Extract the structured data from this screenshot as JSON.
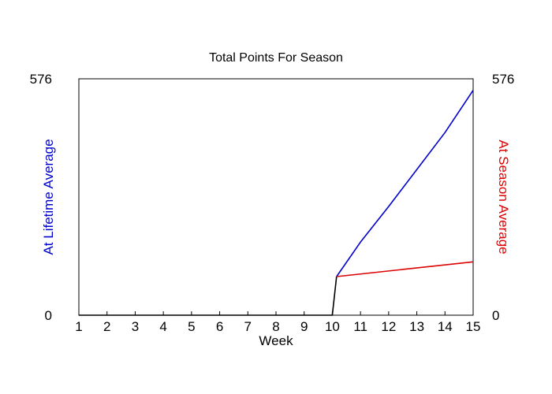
{
  "chart_data": {
    "type": "line",
    "title": "Total Points For Season",
    "xlabel": "Week",
    "ylabel_left": "At Lifetime Average",
    "ylabel_right": "At Season Average",
    "xlim": [
      1,
      15
    ],
    "x_ticks": [
      "1",
      "2",
      "3",
      "4",
      "5",
      "6",
      "7",
      "8",
      "9",
      "10",
      "11",
      "12",
      "13",
      "14",
      "15"
    ],
    "ylim": [
      0,
      576
    ],
    "y_left_ticks": [
      "0",
      "576"
    ],
    "y_right_ticks": [
      "0",
      "576"
    ],
    "colors": {
      "lifetime": "#0000cc",
      "season": "#dd0000",
      "actual": "#000000"
    },
    "series": [
      {
        "key": "actual",
        "x": [
          1,
          10,
          10.15
        ],
        "y": [
          0,
          0,
          94
        ]
      },
      {
        "key": "lifetime",
        "x": [
          10.15,
          11,
          12,
          13,
          14,
          15
        ],
        "y": [
          94,
          178,
          265,
          355,
          445,
          548
        ]
      },
      {
        "key": "season",
        "x": [
          10.15,
          15
        ],
        "y": [
          94,
          130
        ]
      }
    ],
    "grid": false,
    "legend": "none"
  }
}
